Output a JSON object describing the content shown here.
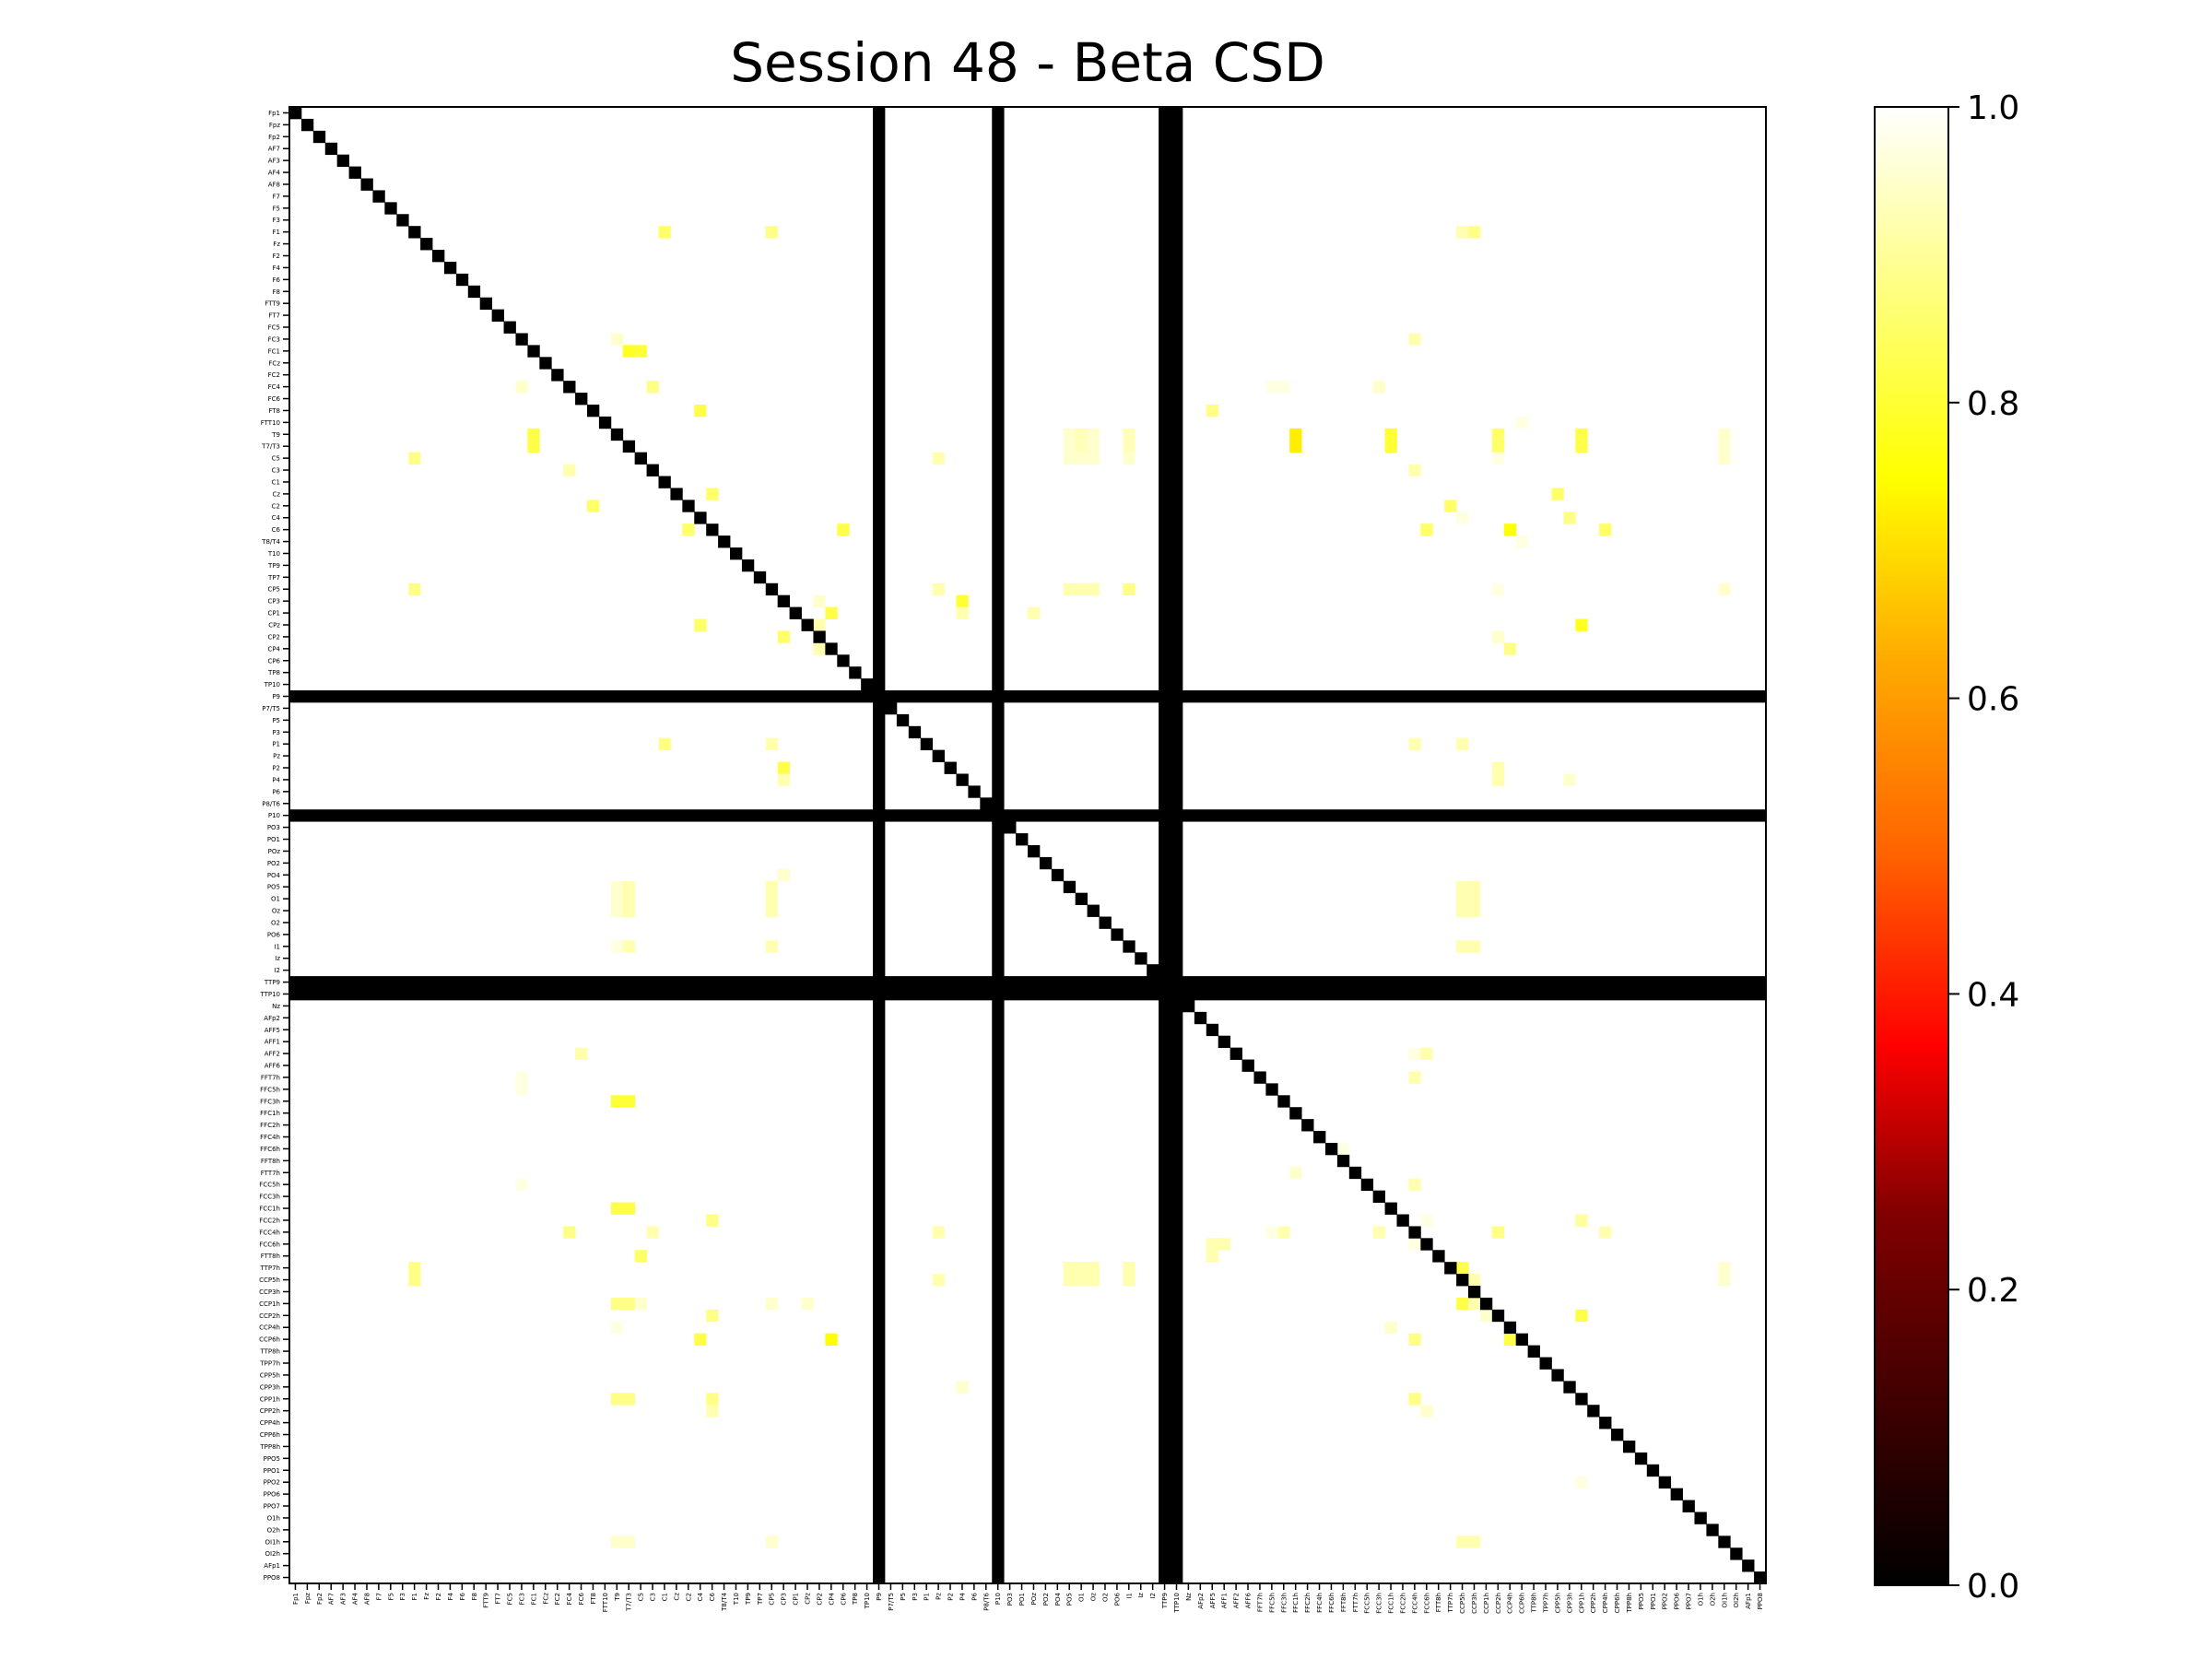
{
  "chart_data": {
    "type": "heatmap",
    "title": "Session 48 - Beta CSD",
    "colormap": "hot",
    "vmin": 0,
    "vmax": 1,
    "background_value": 1.0,
    "diagonal_value": 0.0,
    "channels": [
      "Fp1",
      "Fpz",
      "Fp2",
      "AF7",
      "AF3",
      "AF4",
      "AF8",
      "F7",
      "F5",
      "F3",
      "F1",
      "Fz",
      "F2",
      "F4",
      "F6",
      "F8",
      "FTT9",
      "FT7",
      "FC5",
      "FC3",
      "FC1",
      "FCz",
      "FC2",
      "FC4",
      "FC6",
      "FT8",
      "FTT10",
      "T9",
      "T7/T3",
      "C5",
      "C3",
      "C1",
      "Cz",
      "C2",
      "C4",
      "C6",
      "T8/T4",
      "T10",
      "TP9",
      "TP7",
      "CP5",
      "CP3",
      "CP1",
      "CPz",
      "CP2",
      "CP4",
      "CP6",
      "TP8",
      "TP10",
      "P9",
      "P7/T5",
      "P5",
      "P3",
      "P1",
      "Pz",
      "P2",
      "P4",
      "P6",
      "P8/T6",
      "P10",
      "PO3",
      "PO1",
      "POz",
      "PO2",
      "PO4",
      "PO5",
      "O1",
      "Oz",
      "O2",
      "PO6",
      "I1",
      "Iz",
      "I2",
      "TTP9",
      "TTP10",
      "Nz",
      "AFp2",
      "AFF5",
      "AFF1",
      "AFF2",
      "AFF6",
      "FFT7h",
      "FFC5h",
      "FFC3h",
      "FFC1h",
      "FFC2h",
      "FFC4h",
      "FFC6h",
      "FFT8h",
      "FTT7h",
      "FCC5h",
      "FCC3h",
      "FCC1h",
      "FCC2h",
      "FCC4h",
      "FCC6h",
      "FTT8h",
      "TTP7h",
      "CCP5h",
      "CCP3h",
      "CCP1h",
      "CCP2h",
      "CCP4h",
      "CCP6h",
      "TTP8h",
      "TPP7h",
      "CPP5h",
      "CPP3h",
      "CPP1h",
      "CPP2h",
      "CPP4h",
      "CPP6h",
      "TPP8h",
      "PPO5",
      "PPO1",
      "PPO2",
      "PPO6",
      "PPO7",
      "O1h",
      "O2h",
      "OI1h",
      "OI2h",
      "AFp1",
      "PPO8"
    ],
    "zero_rows_cols": [
      "P9",
      "P10",
      "TTP9",
      "TTP10"
    ],
    "cells": [
      [
        "F1",
        "C1",
        0.85
      ],
      [
        "F1",
        "CP5",
        0.88
      ],
      [
        "F1",
        "CCP5h",
        0.92
      ],
      [
        "F1",
        "CCP3h",
        0.88
      ],
      [
        "FC3",
        "T9",
        0.95
      ],
      [
        "FC3",
        "FCC4h",
        0.92
      ],
      [
        "FC1",
        "T7/T3",
        0.78
      ],
      [
        "FC1",
        "C5",
        0.8
      ],
      [
        "FC4",
        "FC3",
        0.95
      ],
      [
        "FC4",
        "C3",
        0.88
      ],
      [
        "FC4",
        "FFC5h",
        0.97
      ],
      [
        "FC4",
        "FFC3h",
        0.97
      ],
      [
        "FC4",
        "FCC3h",
        0.95
      ],
      [
        "FT8",
        "C4",
        0.82
      ],
      [
        "FT8",
        "AFF5",
        0.88
      ],
      [
        "FTT10",
        "CCP6h",
        0.97
      ],
      [
        "T9",
        "FC1",
        0.82
      ],
      [
        "T9",
        "PO5",
        0.95
      ],
      [
        "T9",
        "O1",
        0.93
      ],
      [
        "T9",
        "Oz",
        0.95
      ],
      [
        "T9",
        "I1",
        0.93
      ],
      [
        "T9",
        "FFC1h",
        0.72
      ],
      [
        "T9",
        "FCC1h",
        0.8
      ],
      [
        "T9",
        "CCP2h",
        0.85
      ],
      [
        "T9",
        "CPP1h",
        0.82
      ],
      [
        "T9",
        "OI1h",
        0.95
      ],
      [
        "T7/T3",
        "FC1",
        0.82
      ],
      [
        "T7/T3",
        "PO5",
        0.95
      ],
      [
        "T7/T3",
        "O1",
        0.93
      ],
      [
        "T7/T3",
        "Oz",
        0.95
      ],
      [
        "T7/T3",
        "I1",
        0.93
      ],
      [
        "T7/T3",
        "FFC1h",
        0.72
      ],
      [
        "T7/T3",
        "FCC1h",
        0.8
      ],
      [
        "T7/T3",
        "CCP2h",
        0.85
      ],
      [
        "T7/T3",
        "CPP1h",
        0.82
      ],
      [
        "T7/T3",
        "OI1h",
        0.95
      ],
      [
        "C5",
        "F1",
        0.88
      ],
      [
        "C5",
        "Pz",
        0.92
      ],
      [
        "C5",
        "PO5",
        0.95
      ],
      [
        "C5",
        "O1",
        0.95
      ],
      [
        "C5",
        "Oz",
        0.95
      ],
      [
        "C5",
        "I1",
        0.95
      ],
      [
        "C5",
        "CCP2h",
        0.97
      ],
      [
        "C5",
        "OI1h",
        0.95
      ],
      [
        "C3",
        "FC4",
        0.92
      ],
      [
        "C3",
        "FCC4h",
        0.92
      ],
      [
        "Cz",
        "C6",
        0.85
      ],
      [
        "Cz",
        "CPP5h",
        0.85
      ],
      [
        "C2",
        "FT8",
        0.85
      ],
      [
        "C2",
        "TTP7h",
        0.85
      ],
      [
        "C4",
        "CCP5h",
        0.97
      ],
      [
        "C4",
        "CPP3h",
        0.88
      ],
      [
        "C6",
        "C2",
        0.85
      ],
      [
        "C6",
        "CP6",
        0.82
      ],
      [
        "C6",
        "FCC6h",
        0.85
      ],
      [
        "C6",
        "CCP4h",
        0.75
      ],
      [
        "C6",
        "CPP4h",
        0.85
      ],
      [
        "T8/T4",
        "CCP6h",
        0.97
      ],
      [
        "CP5",
        "F1",
        0.88
      ],
      [
        "CP5",
        "Pz",
        0.92
      ],
      [
        "CP5",
        "PO5",
        0.92
      ],
      [
        "CP5",
        "O1",
        0.92
      ],
      [
        "CP5",
        "Oz",
        0.92
      ],
      [
        "CP5",
        "I1",
        0.88
      ],
      [
        "CP5",
        "CCP2h",
        0.97
      ],
      [
        "CP5",
        "OI1h",
        0.95
      ],
      [
        "CP3",
        "CP2",
        0.95
      ],
      [
        "CP3",
        "P4",
        0.8
      ],
      [
        "CP1",
        "CP4",
        0.82
      ],
      [
        "CP1",
        "P4",
        0.92
      ],
      [
        "CP1",
        "POz",
        0.92
      ],
      [
        "CPz",
        "C4",
        0.85
      ],
      [
        "CPz",
        "CP2",
        0.92
      ],
      [
        "CPz",
        "CPP1h",
        0.78
      ],
      [
        "CP2",
        "CP3",
        0.85
      ],
      [
        "CP2",
        "CCP2h",
        0.95
      ],
      [
        "CP4",
        "CP2",
        0.92
      ],
      [
        "CP4",
        "CCP4h",
        0.88
      ],
      [
        "P1",
        "C1",
        0.88
      ],
      [
        "P1",
        "CP5",
        0.92
      ],
      [
        "P1",
        "FCC4h",
        0.92
      ],
      [
        "P1",
        "CCP5h",
        0.92
      ],
      [
        "P2",
        "CP3",
        0.82
      ],
      [
        "P2",
        "CCP2h",
        0.92
      ],
      [
        "P4",
        "CP3",
        0.92
      ],
      [
        "P4",
        "CCP2h",
        0.92
      ],
      [
        "P4",
        "CPP3h",
        0.95
      ],
      [
        "PO4",
        "CP3",
        0.95
      ],
      [
        "PO5",
        "T9",
        0.95
      ],
      [
        "PO5",
        "T7/T3",
        0.92
      ],
      [
        "PO5",
        "CP5",
        0.92
      ],
      [
        "PO5",
        "CCP5h",
        0.92
      ],
      [
        "PO5",
        "CCP3h",
        0.92
      ],
      [
        "O1",
        "T9",
        0.95
      ],
      [
        "O1",
        "T7/T3",
        0.92
      ],
      [
        "O1",
        "CP5",
        0.92
      ],
      [
        "O1",
        "CCP5h",
        0.92
      ],
      [
        "O1",
        "CCP3h",
        0.92
      ],
      [
        "Oz",
        "T9",
        0.95
      ],
      [
        "Oz",
        "T7/T3",
        0.92
      ],
      [
        "Oz",
        "CP5",
        0.92
      ],
      [
        "Oz",
        "CCP5h",
        0.92
      ],
      [
        "Oz",
        "CCP3h",
        0.92
      ],
      [
        "I1",
        "T9",
        0.97
      ],
      [
        "I1",
        "T7/T3",
        0.92
      ],
      [
        "I1",
        "CP5",
        0.92
      ],
      [
        "I1",
        "CCP5h",
        0.92
      ],
      [
        "I1",
        "CCP3h",
        0.92
      ],
      [
        "AFF2",
        "FC6",
        0.92
      ],
      [
        "AFF2",
        "FCC4h",
        0.97
      ],
      [
        "AFF2",
        "FCC6h",
        0.92
      ],
      [
        "FFT7h",
        "FC3",
        0.97
      ],
      [
        "FFT7h",
        "FCC4h",
        0.92
      ],
      [
        "FFC5h",
        "FC3",
        0.97
      ],
      [
        "FFC3h",
        "T9",
        0.8
      ],
      [
        "FFC3h",
        "T7/T3",
        0.8
      ],
      [
        "FFC6h",
        "FFT8h",
        0.97
      ],
      [
        "FTT7h",
        "FFC1h",
        0.95
      ],
      [
        "FCC5h",
        "FC3",
        0.97
      ],
      [
        "FCC5h",
        "FCC4h",
        0.92
      ],
      [
        "FCC1h",
        "T9",
        0.82
      ],
      [
        "FCC1h",
        "T7/T3",
        0.82
      ],
      [
        "FCC2h",
        "C6",
        0.88
      ],
      [
        "FCC2h",
        "FCC6h",
        0.97
      ],
      [
        "FCC2h",
        "CPP1h",
        0.9
      ],
      [
        "FCC4h",
        "FC4",
        0.88
      ],
      [
        "FCC4h",
        "C3",
        0.92
      ],
      [
        "FCC4h",
        "Pz",
        0.92
      ],
      [
        "FCC4h",
        "FFC5h",
        0.97
      ],
      [
        "FCC4h",
        "FFC3h",
        0.92
      ],
      [
        "FCC4h",
        "FCC3h",
        0.92
      ],
      [
        "FCC4h",
        "CCP2h",
        0.88
      ],
      [
        "FCC4h",
        "CPP4h",
        0.92
      ],
      [
        "FCC6h",
        "AFF5",
        0.92
      ],
      [
        "FCC6h",
        "AFF1",
        0.92
      ],
      [
        "FCC6h",
        "FCC4h",
        0.97
      ],
      [
        "FTT8h",
        "C5",
        0.85
      ],
      [
        "FTT8h",
        "AFF5",
        0.92
      ],
      [
        "TTP7h",
        "F1",
        0.88
      ],
      [
        "TTP7h",
        "PO5",
        0.92
      ],
      [
        "TTP7h",
        "O1",
        0.92
      ],
      [
        "TTP7h",
        "Oz",
        0.92
      ],
      [
        "TTP7h",
        "I1",
        0.92
      ],
      [
        "TTP7h",
        "CCP5h",
        0.82
      ],
      [
        "TTP7h",
        "OI1h",
        0.95
      ],
      [
        "CCP5h",
        "F1",
        0.88
      ],
      [
        "CCP5h",
        "Pz",
        0.92
      ],
      [
        "CCP5h",
        "PO5",
        0.92
      ],
      [
        "CCP5h",
        "O1",
        0.92
      ],
      [
        "CCP5h",
        "Oz",
        0.92
      ],
      [
        "CCP5h",
        "I1",
        0.92
      ],
      [
        "CCP5h",
        "CCP3h",
        0.92
      ],
      [
        "CCP5h",
        "OI1h",
        0.95
      ],
      [
        "CCP1h",
        "T9",
        0.88
      ],
      [
        "CCP1h",
        "T7/T3",
        0.88
      ],
      [
        "CCP1h",
        "C5",
        0.95
      ],
      [
        "CCP1h",
        "CP5",
        0.95
      ],
      [
        "CCP1h",
        "CPz",
        0.95
      ],
      [
        "CCP1h",
        "CCP5h",
        0.82
      ],
      [
        "CCP1h",
        "CCP3h",
        0.92
      ],
      [
        "CCP2h",
        "C6",
        0.88
      ],
      [
        "CCP2h",
        "CCP1h",
        0.95
      ],
      [
        "CCP2h",
        "CPP1h",
        0.82
      ],
      [
        "CCP4h",
        "T9",
        0.97
      ],
      [
        "CCP4h",
        "FCC1h",
        0.95
      ],
      [
        "CCP6h",
        "C4",
        0.82
      ],
      [
        "CCP6h",
        "CP4",
        0.75
      ],
      [
        "CCP6h",
        "FCC4h",
        0.88
      ],
      [
        "CCP6h",
        "CCP4h",
        0.82
      ],
      [
        "CPP3h",
        "P4",
        0.95
      ],
      [
        "CPP1h",
        "T9",
        0.88
      ],
      [
        "CPP1h",
        "T7/T3",
        0.88
      ],
      [
        "CPP1h",
        "C6",
        0.88
      ],
      [
        "CPP1h",
        "FCC4h",
        0.88
      ],
      [
        "CPP2h",
        "C6",
        0.92
      ],
      [
        "CPP2h",
        "FCC6h",
        0.95
      ],
      [
        "PPO2",
        "CPP1h",
        0.97
      ],
      [
        "OI1h",
        "T9",
        0.95
      ],
      [
        "OI1h",
        "T7/T3",
        0.95
      ],
      [
        "OI1h",
        "CP5",
        0.95
      ],
      [
        "OI1h",
        "CCP5h",
        0.92
      ],
      [
        "OI1h",
        "CCP3h",
        0.92
      ]
    ],
    "colorbar_ticks": [
      "0.0",
      "0.2",
      "0.4",
      "0.6",
      "0.8",
      "1.0"
    ],
    "xlabel": "",
    "ylabel": ""
  }
}
